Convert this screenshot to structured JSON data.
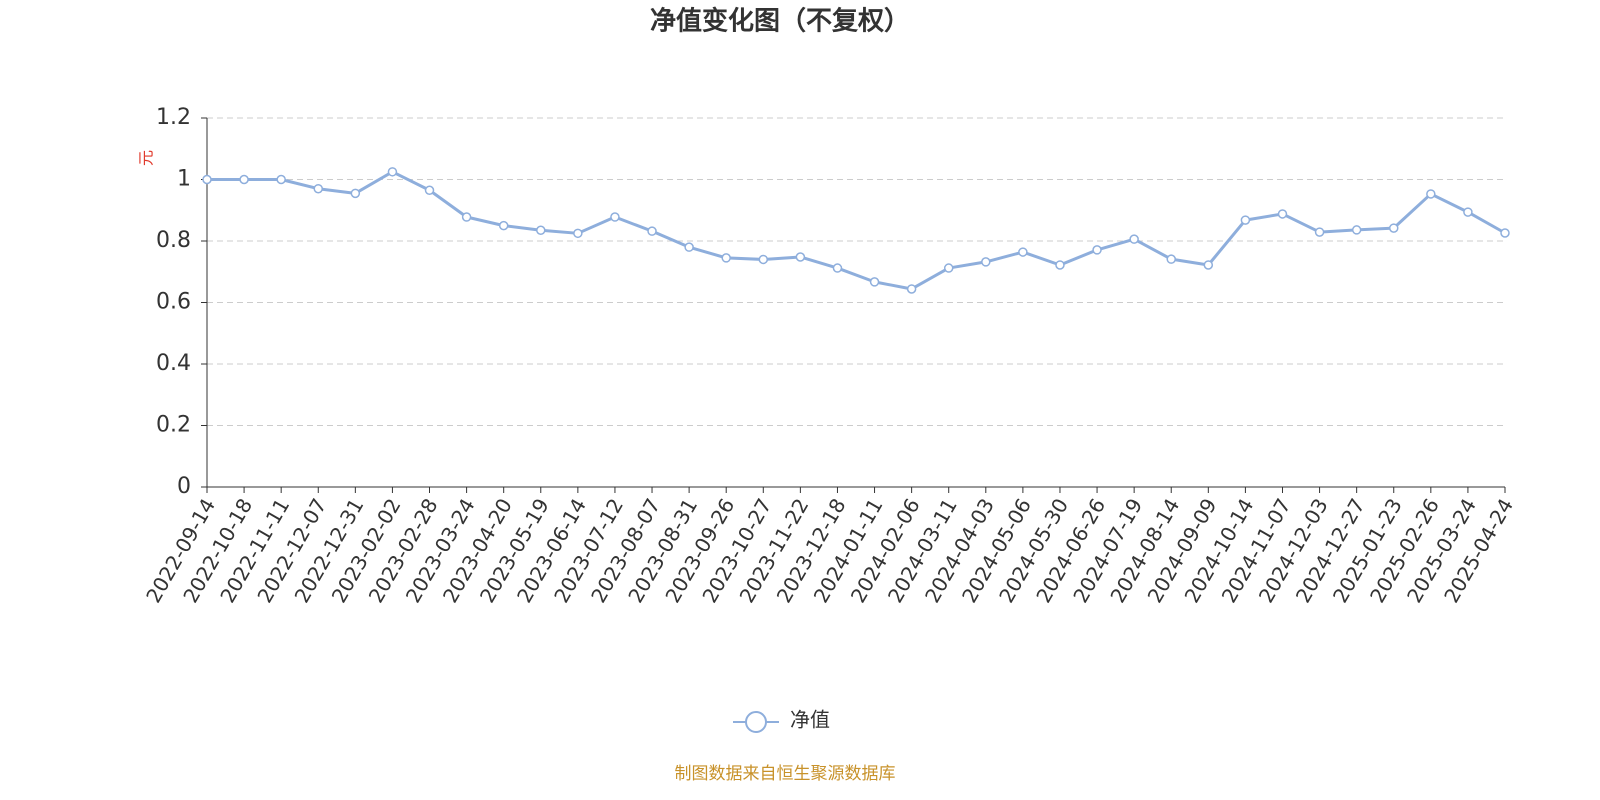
{
  "chart_data": {
    "type": "line",
    "title": "净值变化图（不复权）",
    "y_label": "元",
    "categories": [
      "2022-09-14",
      "2022-10-18",
      "2022-11-11",
      "2022-12-07",
      "2022-12-31",
      "2023-02-02",
      "2023-02-28",
      "2023-03-24",
      "2023-04-20",
      "2023-05-19",
      "2023-06-14",
      "2023-07-12",
      "2023-08-07",
      "2023-08-31",
      "2023-09-26",
      "2023-10-27",
      "2023-11-22",
      "2023-12-18",
      "2024-01-11",
      "2024-02-06",
      "2024-03-11",
      "2024-04-03",
      "2024-05-06",
      "2024-05-30",
      "2024-06-26",
      "2024-07-19",
      "2024-08-14",
      "2024-09-09",
      "2024-10-14",
      "2024-11-07",
      "2024-12-03",
      "2024-12-27",
      "2025-01-23",
      "2025-02-26",
      "2025-03-24",
      "2025-04-24"
    ],
    "series": [
      {
        "name": "净值",
        "color": "#8eaedc",
        "values": [
          1.0,
          1.0,
          1.0,
          0.97,
          0.955,
          1.025,
          0.965,
          0.878,
          0.85,
          0.835,
          0.825,
          0.878,
          0.832,
          0.78,
          0.745,
          0.74,
          0.748,
          0.712,
          0.667,
          0.644,
          0.712,
          0.732,
          0.764,
          0.722,
          0.771,
          0.806,
          0.741,
          0.722,
          0.868,
          0.888,
          0.829,
          0.836,
          0.842,
          0.953,
          0.894,
          0.826
        ]
      }
    ],
    "ylim": [
      0,
      1.2
    ],
    "yticks": [
      0,
      0.2,
      0.4,
      0.6,
      0.8,
      1,
      1.2
    ],
    "grid": true,
    "source": "制图数据来自恒生聚源数据库"
  }
}
